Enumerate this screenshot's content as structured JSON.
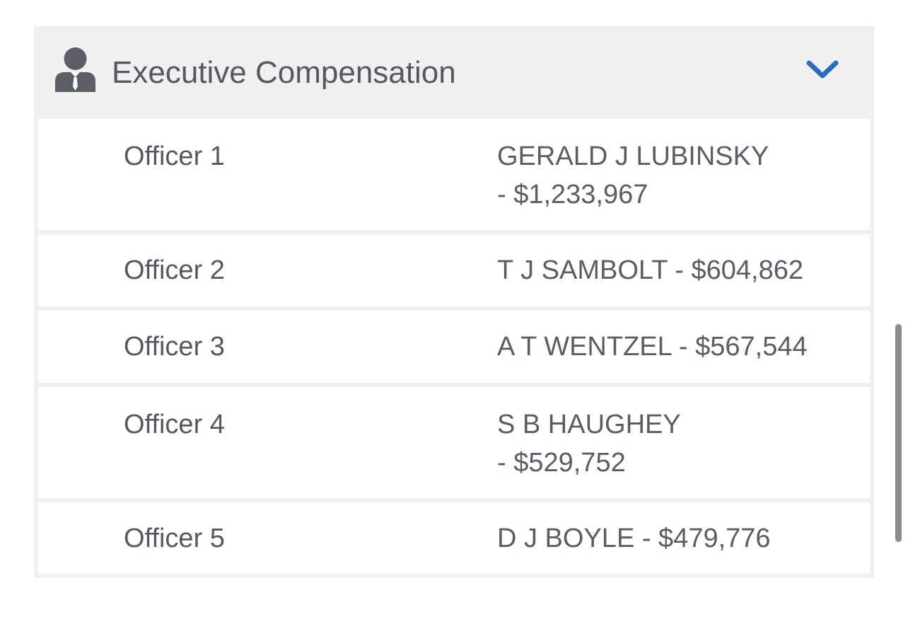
{
  "section": {
    "title": "Executive Compensation",
    "icon": "executive-person-icon",
    "toggle_icon": "chevron-down-icon",
    "accent_color": "#2a6dbf"
  },
  "officers": [
    {
      "label": "Officer 1",
      "value": "GERALD J LUBINSKY - $1,233,967"
    },
    {
      "label": "Officer 2",
      "value": "T J SAMBOLT - $604,862"
    },
    {
      "label": "Officer 3",
      "value": "A T WENTZEL - $567,544"
    },
    {
      "label": "Officer 4",
      "value": "S B HAUGHEY - $529,752"
    },
    {
      "label": "Officer 5",
      "value": "D J BOYLE - $479,776"
    }
  ]
}
